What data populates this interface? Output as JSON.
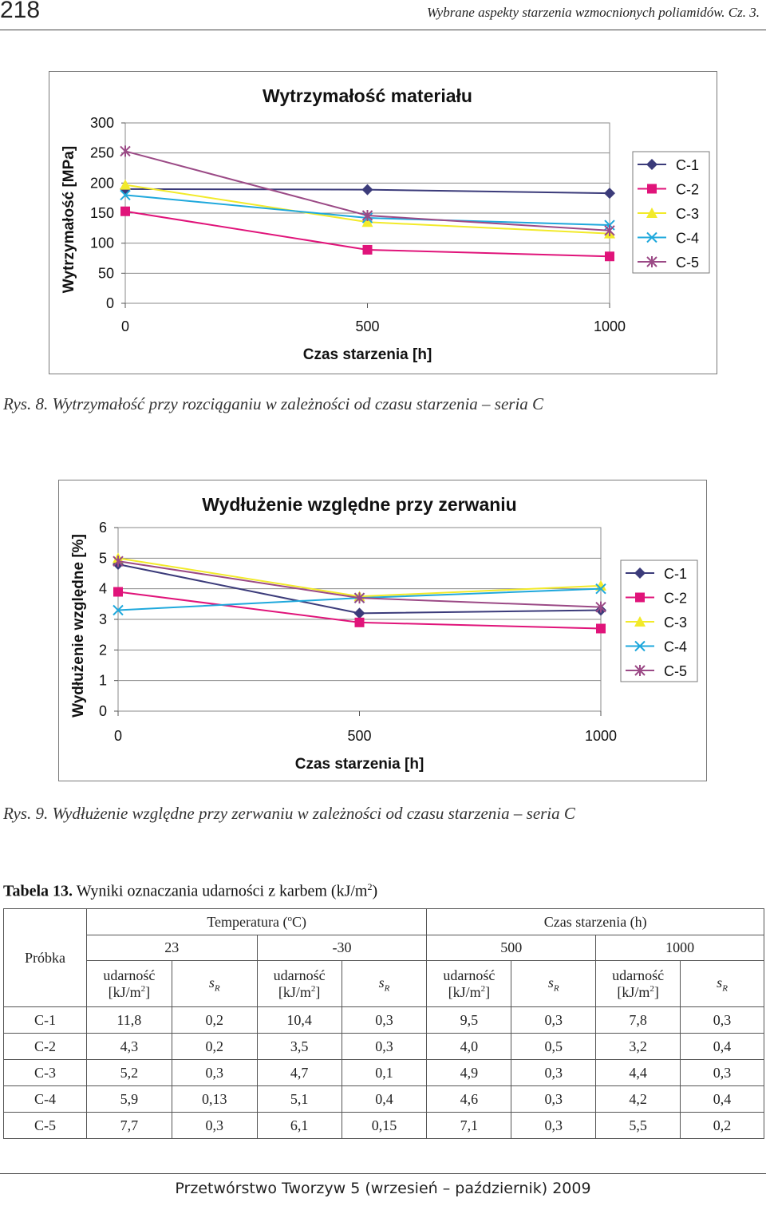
{
  "header": {
    "page_number": "218",
    "running_title": "Wybrane aspekty starzenia wzmocnionych poliamidów. Cz. 3."
  },
  "figures": [
    {
      "caption": "Rys. 8. Wytrzymałość przy rozciąganiu w zależności od czasu starzenia – seria C"
    },
    {
      "caption": "Rys. 9. Wydłużenie względne przy zerwaniu w zależności od czasu starzenia – seria C"
    }
  ],
  "chart_data": [
    {
      "type": "line",
      "title": "Wytrzymałość materiału",
      "xlabel": "Czas starzenia [h]",
      "ylabel": "Wytrzymałość [MPa]",
      "x": [
        0,
        500,
        1000
      ],
      "xticks": [
        "0",
        "500",
        "1000"
      ],
      "yticks": [
        "0",
        "50",
        "100",
        "150",
        "200",
        "250",
        "300"
      ],
      "xlim": [
        0,
        1000
      ],
      "ylim": [
        0,
        300
      ],
      "grid": "horizontal",
      "legend_position": "right",
      "series": [
        {
          "name": "C-1",
          "values": [
            190,
            189,
            183
          ],
          "color": "#3b3b7a",
          "marker": "diamond"
        },
        {
          "name": "C-2",
          "values": [
            153,
            89,
            78
          ],
          "color": "#e0147a",
          "marker": "square"
        },
        {
          "name": "C-3",
          "values": [
            197,
            135,
            116
          ],
          "color": "#f2ea2a",
          "marker": "triangle"
        },
        {
          "name": "C-4",
          "values": [
            180,
            142,
            130
          ],
          "color": "#1fa8dc",
          "marker": "x"
        },
        {
          "name": "C-5",
          "values": [
            253,
            146,
            121
          ],
          "color": "#9b4a86",
          "marker": "star"
        }
      ]
    },
    {
      "type": "line",
      "title": "Wydłużenie względne przy zerwaniu",
      "xlabel": "Czas starzenia [h]",
      "ylabel": "Wydłużenie względne [%]",
      "x": [
        0,
        500,
        1000
      ],
      "xticks": [
        "0",
        "500",
        "1000"
      ],
      "yticks": [
        "0",
        "1",
        "2",
        "3",
        "4",
        "5",
        "6"
      ],
      "xlim": [
        0,
        1000
      ],
      "ylim": [
        0,
        6
      ],
      "grid": "horizontal",
      "legend_position": "right",
      "series": [
        {
          "name": "C-1",
          "values": [
            4.8,
            3.2,
            3.3
          ],
          "color": "#3b3b7a",
          "marker": "diamond"
        },
        {
          "name": "C-2",
          "values": [
            3.9,
            2.9,
            2.7
          ],
          "color": "#e0147a",
          "marker": "square"
        },
        {
          "name": "C-3",
          "values": [
            5.0,
            3.75,
            4.1
          ],
          "color": "#f2ea2a",
          "marker": "triangle"
        },
        {
          "name": "C-4",
          "values": [
            3.3,
            3.7,
            4.0
          ],
          "color": "#1fa8dc",
          "marker": "x"
        },
        {
          "name": "C-5",
          "values": [
            4.9,
            3.7,
            3.4
          ],
          "color": "#9b4a86",
          "marker": "star"
        }
      ]
    }
  ],
  "table": {
    "label": "Tabela 13.",
    "title": "Wyniki oznaczania udarności z karbem (kJ/m",
    "title_sup": "2",
    "title_end": ")",
    "probka": "Próbka",
    "temperatura": "Temperatura (",
    "temperatura_sup": "o",
    "temperatura_end": "C)",
    "czas": "Czas starzenia (h)",
    "t1": "23",
    "t2": "-30",
    "t3": "500",
    "t4": "1000",
    "udarnosc": "udarność",
    "unit": "[kJ/m",
    "unit_sup": "2",
    "unit_end": "]",
    "sr": "s",
    "sr_sub": "R",
    "rows": [
      [
        "C-1",
        "11,8",
        "0,2",
        "10,4",
        "0,3",
        "9,5",
        "0,3",
        "7,8",
        "0,3"
      ],
      [
        "C-2",
        "4,3",
        "0,2",
        "3,5",
        "0,3",
        "4,0",
        "0,5",
        "3,2",
        "0,4"
      ],
      [
        "C-3",
        "5,2",
        "0,3",
        "4,7",
        "0,1",
        "4,9",
        "0,3",
        "4,4",
        "0,3"
      ],
      [
        "C-4",
        "5,9",
        "0,13",
        "5,1",
        "0,4",
        "4,6",
        "0,3",
        "4,2",
        "0,4"
      ],
      [
        "C-5",
        "7,7",
        "0,3",
        "6,1",
        "0,15",
        "7,1",
        "0,3",
        "5,5",
        "0,2"
      ]
    ]
  },
  "footer": {
    "text": "Przetwórstwo Tworzyw 5 (wrzesień – październik) 2009"
  }
}
